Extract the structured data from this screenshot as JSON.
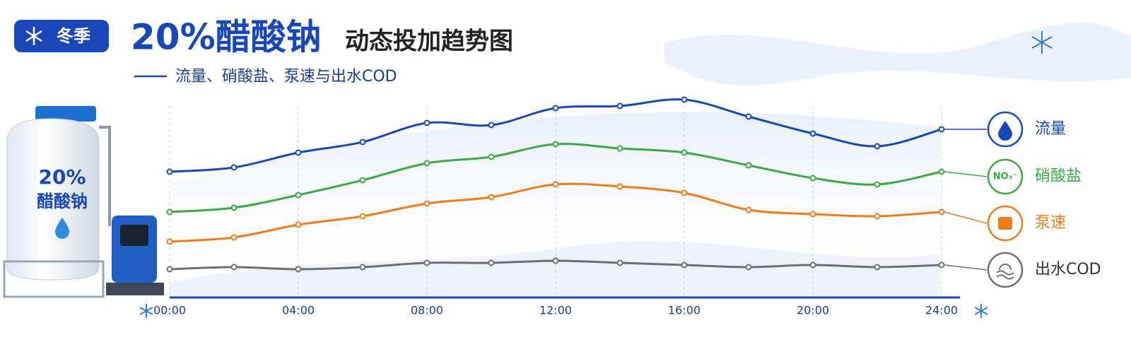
{
  "header": {
    "badge": "冬季",
    "title": "20%醋酸钠",
    "subtitle": "动态投加趋势图",
    "caption": "流量、硝酸盐、泵速与出水COD"
  },
  "tank": {
    "percent": "20%",
    "name": "醋酸钠"
  },
  "chart_data": {
    "type": "line",
    "x": [
      0,
      2,
      4,
      6,
      8,
      10,
      12,
      14,
      16,
      18,
      20,
      22,
      24
    ],
    "xlim": [
      0,
      24
    ],
    "xticks": [
      {
        "value": 0,
        "label": "00:00"
      },
      {
        "value": 4,
        "label": "04:00"
      },
      {
        "value": 8,
        "label": "08:00"
      },
      {
        "value": 12,
        "label": "12:00"
      },
      {
        "value": 16,
        "label": "16:00"
      },
      {
        "value": 20,
        "label": "20:00"
      },
      {
        "value": 24,
        "label": "24:00"
      }
    ],
    "ylim": [
      0,
      100
    ],
    "grid": true,
    "series": [
      {
        "name": "流量",
        "color": "#1a47b8",
        "values": [
          59,
          61,
          68,
          73,
          82,
          81,
          89,
          90,
          93,
          85,
          77,
          71,
          79
        ]
      },
      {
        "name": "硝酸盐",
        "color": "#3aaa45",
        "icon": "NO₃⁻",
        "values": [
          40,
          42,
          48,
          55,
          63,
          66,
          72,
          70,
          68,
          62,
          56,
          53,
          59
        ]
      },
      {
        "name": "泵速",
        "color": "#f07b1d",
        "values": [
          26,
          28,
          34,
          38,
          44,
          47,
          53,
          52,
          49,
          41,
          39,
          38,
          40
        ]
      },
      {
        "name": "出水COD",
        "color": "#6f6f6f",
        "values": [
          13,
          14,
          13,
          14,
          16,
          16,
          17,
          16,
          15,
          14,
          15,
          14,
          15
        ]
      }
    ]
  }
}
